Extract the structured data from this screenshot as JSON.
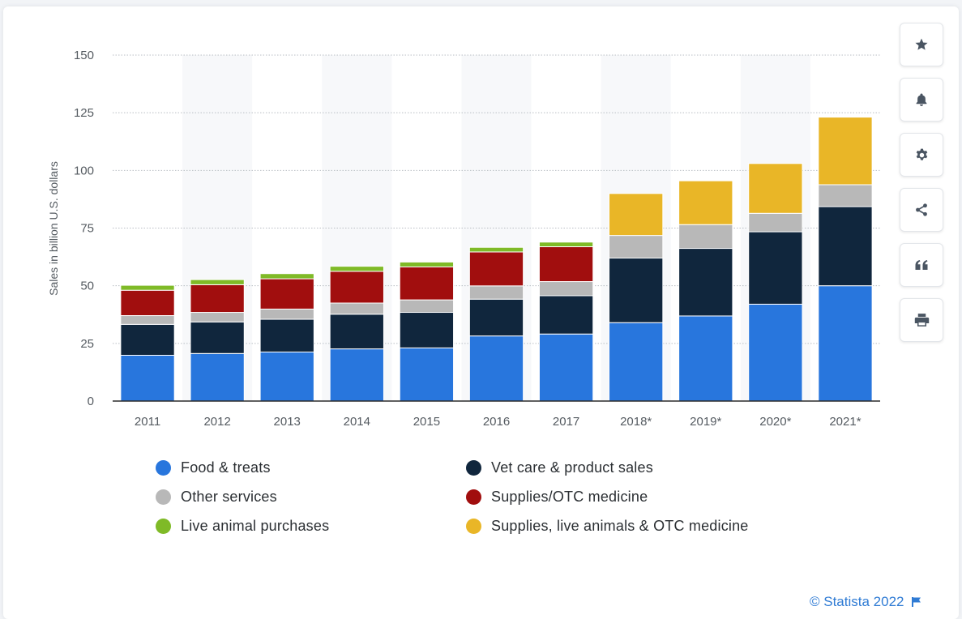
{
  "chart_data": {
    "type": "bar",
    "stacked": true,
    "categories": [
      "2011",
      "2012",
      "2013",
      "2014",
      "2015",
      "2016",
      "2017",
      "2018*",
      "2019*",
      "2020*",
      "2021*"
    ],
    "series": [
      {
        "name": "Food & treats",
        "color": "#2876dd",
        "values": [
          19.85,
          20.62,
          21.26,
          22.62,
          23.04,
          28.23,
          29.07,
          34.0,
          36.9,
          42.0,
          50.0
        ]
      },
      {
        "name": "Vet care & product sales",
        "color": "#10263d",
        "values": [
          13.41,
          13.67,
          14.21,
          15.04,
          15.42,
          15.95,
          16.62,
          28.0,
          29.3,
          31.4,
          34.3
        ]
      },
      {
        "name": "Other services",
        "color": "#b8b8b8",
        "values": [
          3.79,
          4.16,
          4.41,
          4.84,
          5.41,
          5.76,
          6.11,
          9.8,
          10.3,
          8.0,
          9.5
        ]
      },
      {
        "name": "Supplies/OTC medicine",
        "color": "#a10e0e",
        "values": [
          11.0,
          12.0,
          13.14,
          13.75,
          14.28,
          14.71,
          15.11,
          0,
          0,
          0,
          0
        ]
      },
      {
        "name": "Live animal purchases",
        "color": "#7fba27",
        "values": [
          2.15,
          2.21,
          2.23,
          2.19,
          2.12,
          2.01,
          2.01,
          0,
          0,
          0,
          0
        ]
      },
      {
        "name": "Supplies, live animals & OTC medicine",
        "color": "#e9b627",
        "values": [
          0,
          0,
          0,
          0,
          0,
          0,
          0,
          18.2,
          19.0,
          21.6,
          29.3
        ]
      }
    ],
    "ylabel": "Sales in billion U.S. dollars",
    "xlabel": "",
    "ylim": [
      0,
      150
    ],
    "yticks": [
      0,
      25,
      50,
      75,
      100,
      125,
      150
    ],
    "grid": true,
    "legend_position": "bottom"
  },
  "toolbar": {
    "items": [
      {
        "name": "favorite-button",
        "icon": "star-icon"
      },
      {
        "name": "notification-button",
        "icon": "bell-icon"
      },
      {
        "name": "settings-button",
        "icon": "gear-icon"
      },
      {
        "name": "share-button",
        "icon": "share-icon"
      },
      {
        "name": "cite-button",
        "icon": "quote-icon"
      },
      {
        "name": "print-button",
        "icon": "printer-icon"
      }
    ]
  },
  "credits": {
    "text": "© Statista 2022",
    "icon": "flag-icon"
  }
}
